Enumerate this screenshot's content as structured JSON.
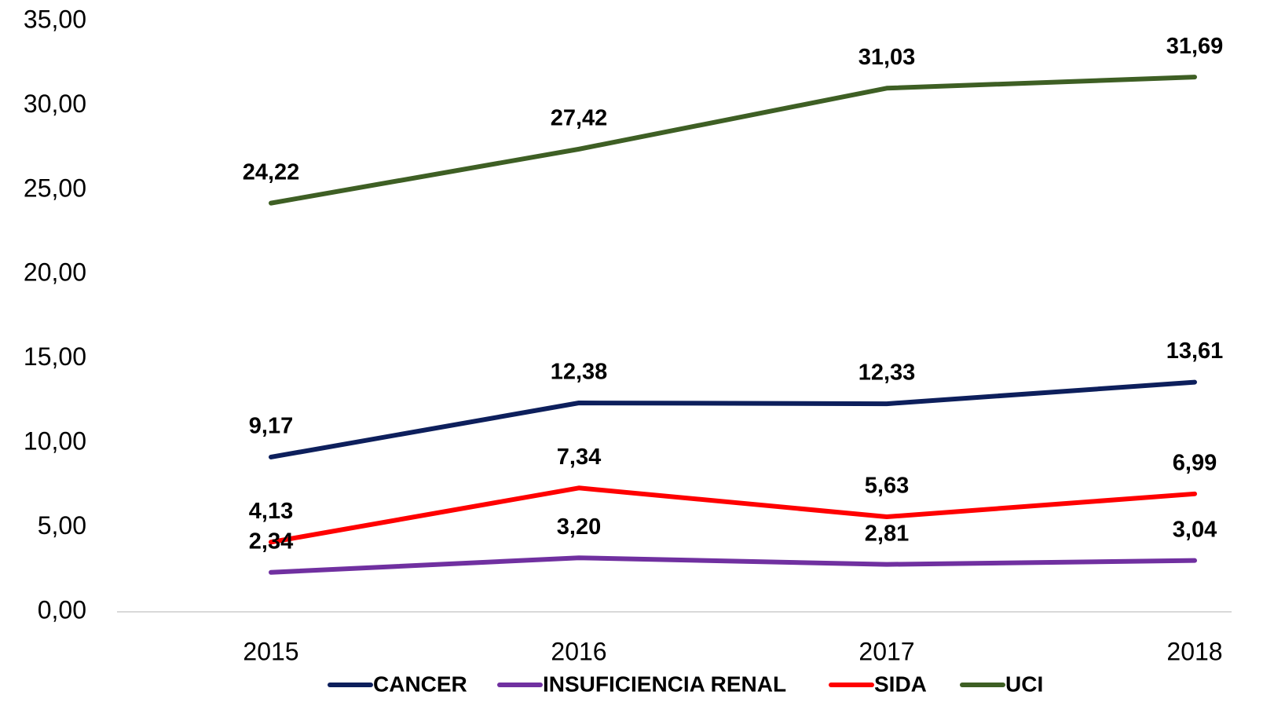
{
  "chart_data": {
    "type": "line",
    "categories": [
      "2015",
      "2016",
      "2017",
      "2018"
    ],
    "series": [
      {
        "name": "CANCER",
        "color": "#0d1f5c",
        "values": [
          9.17,
          12.38,
          12.33,
          13.61
        ],
        "value_labels": [
          "9,17",
          "12,38",
          "12,33",
          "13,61"
        ]
      },
      {
        "name": "INSUFICIENCIA RENAL",
        "color": "#7030a0",
        "values": [
          2.34,
          3.2,
          2.81,
          3.04
        ],
        "value_labels": [
          "2,34",
          "3,20",
          "2,81",
          "3,04"
        ]
      },
      {
        "name": "SIDA",
        "color": "#ff0000",
        "values": [
          4.13,
          7.34,
          5.63,
          6.99
        ],
        "value_labels": [
          "4,13",
          "7,34",
          "5,63",
          "6,99"
        ]
      },
      {
        "name": "UCI",
        "color": "#3e5f24",
        "values": [
          24.22,
          27.42,
          31.03,
          31.69
        ],
        "value_labels": [
          "24,22",
          "27,42",
          "31,03",
          "31,69"
        ]
      }
    ],
    "ylim": [
      0,
      35
    ],
    "yticks": [
      {
        "value": 0,
        "label": "0,00"
      },
      {
        "value": 5,
        "label": "5,00"
      },
      {
        "value": 10,
        "label": "10,00"
      },
      {
        "value": 15,
        "label": "15,00"
      },
      {
        "value": 20,
        "label": "20,00"
      },
      {
        "value": 25,
        "label": "25,00"
      },
      {
        "value": 30,
        "label": "30,00"
      },
      {
        "value": 35,
        "label": "35,00"
      }
    ],
    "grid": false,
    "legend": "bottom"
  }
}
